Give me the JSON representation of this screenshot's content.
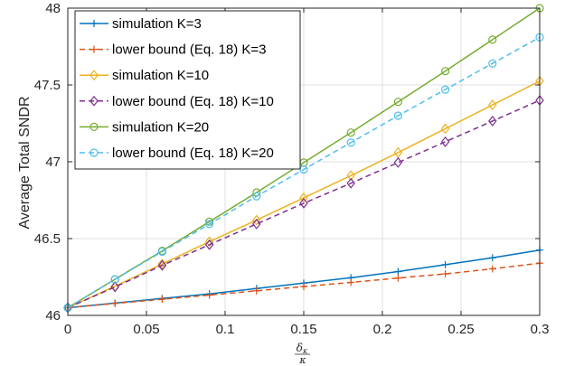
{
  "chart_data": {
    "type": "line",
    "xlabel": {
      "numerator": "δκ",
      "numerator_main": "δ",
      "numerator_sub": "κ",
      "denominator": "κ"
    },
    "ylabel": "Average Total SNDR",
    "xlim": [
      0,
      0.3
    ],
    "ylim": [
      46,
      48
    ],
    "x_ticks": [
      "0",
      "0.05",
      "0.1",
      "0.15",
      "0.2",
      "0.25",
      "0.3"
    ],
    "y_ticks": [
      "46",
      "46.5",
      "47",
      "47.5",
      "48"
    ],
    "grid": true,
    "legend_position": "top-left",
    "x": [
      0,
      0.03,
      0.06,
      0.09,
      0.12,
      0.15,
      0.18,
      0.21,
      0.24,
      0.27,
      0.3
    ],
    "series": [
      {
        "name": "simulation K=3",
        "color": "#0072BD",
        "dash": "solid",
        "marker": "plus",
        "values": [
          46.05,
          46.08,
          46.11,
          46.14,
          46.175,
          46.21,
          46.245,
          46.285,
          46.33,
          46.375,
          46.425
        ]
      },
      {
        "name": "lower bound (Eq. 18) K=3",
        "color": "#D95319",
        "dash": "dashed",
        "marker": "plus",
        "values": [
          46.05,
          46.078,
          46.105,
          46.132,
          46.16,
          46.188,
          46.215,
          46.243,
          46.27,
          46.303,
          46.34
        ]
      },
      {
        "name": "simulation K=10",
        "color": "#EDB120",
        "dash": "solid",
        "marker": "diamond",
        "values": [
          46.05,
          46.19,
          46.335,
          46.48,
          46.62,
          46.765,
          46.91,
          47.06,
          47.215,
          47.37,
          47.525
        ]
      },
      {
        "name": "lower bound (Eq. 18) K=10",
        "color": "#7E2F8E",
        "dash": "dashed",
        "marker": "diamond",
        "values": [
          46.05,
          46.185,
          46.325,
          46.46,
          46.595,
          46.73,
          46.86,
          46.995,
          47.13,
          47.265,
          47.4
        ]
      },
      {
        "name": "simulation K=20",
        "color": "#77AC30",
        "dash": "solid",
        "marker": "circle",
        "values": [
          46.05,
          46.235,
          46.42,
          46.61,
          46.8,
          46.995,
          47.19,
          47.39,
          47.59,
          47.795,
          48.0
        ]
      },
      {
        "name": "lower bound (Eq. 18) K=20",
        "color": "#4DBEEE",
        "dash": "dashed",
        "marker": "circle",
        "values": [
          46.05,
          46.235,
          46.415,
          46.595,
          46.775,
          46.95,
          47.125,
          47.3,
          47.47,
          47.64,
          47.81
        ]
      }
    ]
  }
}
